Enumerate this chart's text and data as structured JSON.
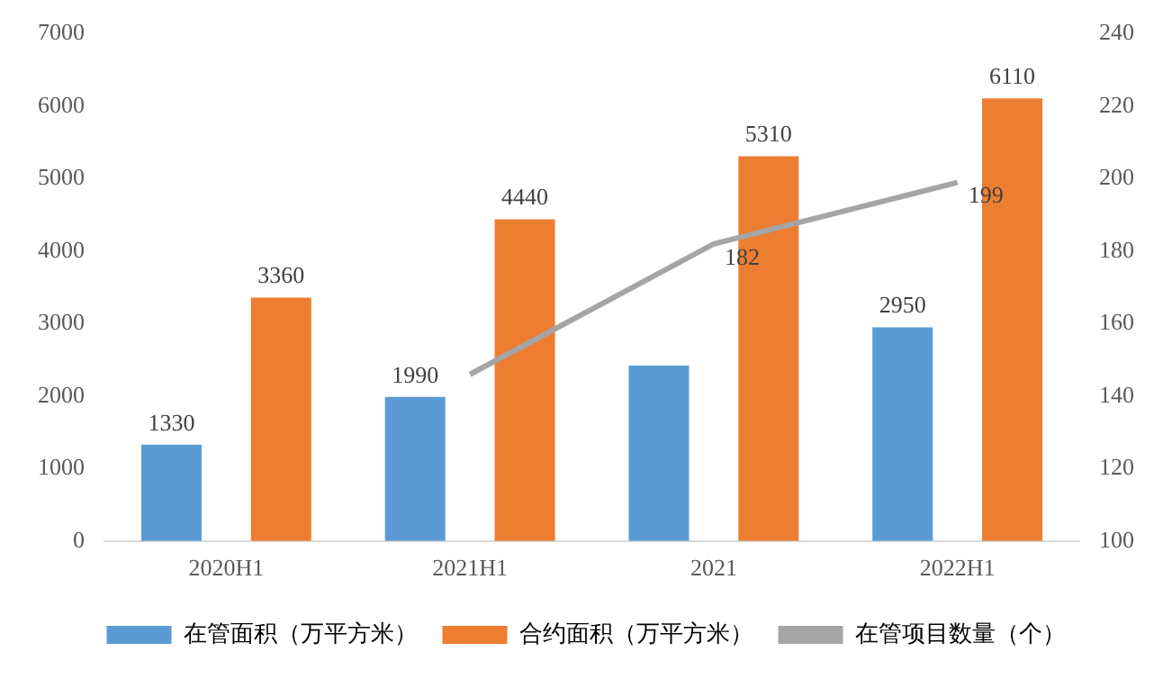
{
  "chart_data": {
    "type": "bar",
    "categories": [
      "2020H1",
      "2021H1",
      "2021",
      "2022H1"
    ],
    "series": [
      {
        "name": "在管面积（万平方米）",
        "color": "#5b9bd5",
        "values": [
          1330,
          1990,
          2420,
          2950
        ],
        "value_labels": [
          "1330",
          "1990",
          null,
          "2950"
        ]
      },
      {
        "name": "合约面积（万平方米）",
        "color": "#ed7d31",
        "values": [
          3360,
          4440,
          5310,
          6110
        ],
        "value_labels": [
          "3360",
          "4440",
          "5310",
          "6110"
        ]
      },
      {
        "name": "在管项目数量（个）",
        "type": "line",
        "axis": "y2",
        "color": "#a5a5a5",
        "marker": "none",
        "values": [
          null,
          146,
          182,
          199
        ],
        "value_labels": [
          null,
          null,
          "182",
          "199"
        ]
      }
    ],
    "ylim": [
      0,
      7000
    ],
    "yticks": [
      0,
      1000,
      2000,
      3000,
      4000,
      5000,
      6000,
      7000
    ],
    "y2lim": [
      100,
      240
    ],
    "y2ticks": [
      100,
      120,
      140,
      160,
      180,
      200,
      220,
      240
    ],
    "grid": false,
    "legend": "bottom"
  }
}
